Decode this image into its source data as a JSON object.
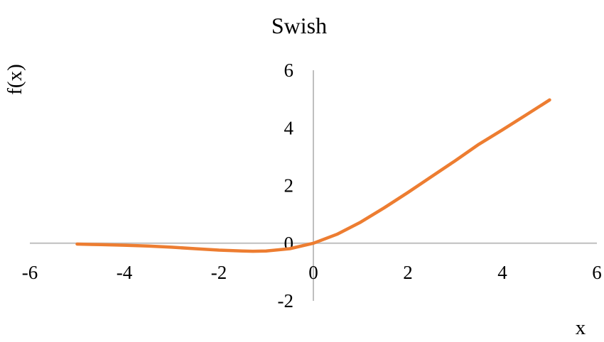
{
  "chart_data": {
    "type": "line",
    "title": "Swish",
    "xlabel": "x",
    "ylabel": "f(x)",
    "xlim": [
      -6,
      6
    ],
    "ylim": [
      -2,
      6
    ],
    "x_ticks": [
      -6,
      -4,
      -2,
      0,
      2,
      4,
      6
    ],
    "y_ticks": [
      -2,
      0,
      2,
      4,
      6
    ],
    "x_tick_labels": [
      "-6",
      "-4",
      "-2",
      "0",
      "2",
      "4",
      "6"
    ],
    "y_tick_labels": [
      "-2",
      "0",
      "2",
      "4",
      "6"
    ],
    "grid": false,
    "legend": "none",
    "series": [
      {
        "color": "#ED7D31",
        "x": [
          -5,
          -4.5,
          -4,
          -3.5,
          -3,
          -2.5,
          -2,
          -1.5,
          -1.28,
          -1,
          -0.5,
          0,
          0.5,
          1,
          1.5,
          2,
          2.5,
          3,
          3.5,
          4,
          4.5,
          5
        ],
        "y": [
          -0.03,
          -0.05,
          -0.07,
          -0.1,
          -0.14,
          -0.19,
          -0.24,
          -0.27,
          -0.28,
          -0.27,
          -0.19,
          0,
          0.31,
          0.73,
          1.23,
          1.76,
          2.31,
          2.86,
          3.43,
          3.93,
          4.45,
          4.97
        ]
      }
    ]
  }
}
